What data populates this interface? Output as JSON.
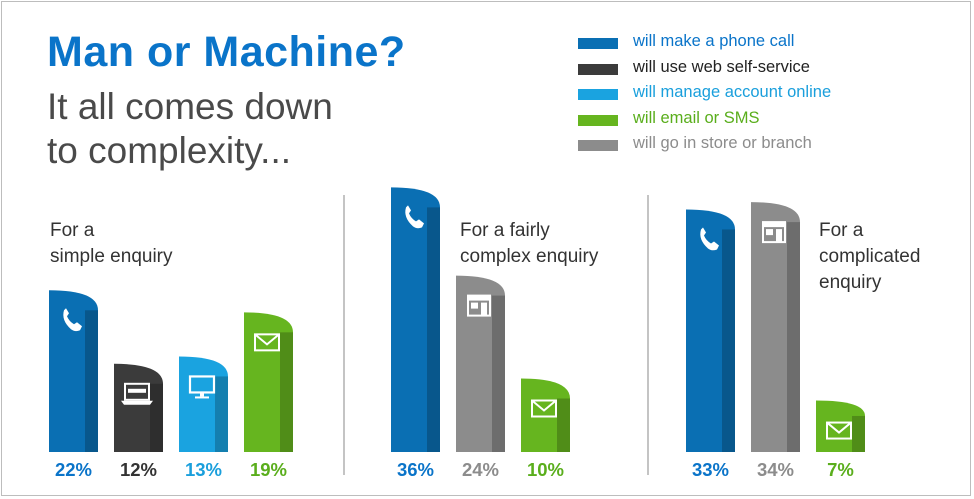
{
  "title": "Man or Machine?",
  "subtitle_lines": [
    "It all comes down",
    "to complexity..."
  ],
  "legend": [
    {
      "label": "will make a phone call",
      "color": "#0a6fb3",
      "text_color": "#0a74c9"
    },
    {
      "label": "will use web self-service",
      "color": "#3b3b3b",
      "text_color": "#222222"
    },
    {
      "label": "will manage account online",
      "color": "#1aa3e0",
      "text_color": "#1a9fdc"
    },
    {
      "label": "will email or SMS",
      "color": "#66b51f",
      "text_color": "#5aae1c"
    },
    {
      "label": "will go in store or branch",
      "color": "#8c8c8c",
      "text_color": "#8c8c8c"
    }
  ],
  "chart_data": {
    "type": "bar",
    "groups": [
      {
        "label_lines": [
          "For a",
          "simple enquiry"
        ],
        "bars": [
          {
            "channel": "will make a phone call",
            "value": 22,
            "label": "22%",
            "icon": "phone-icon"
          },
          {
            "channel": "will use web self-service",
            "value": 12,
            "label": "12%",
            "icon": "web-laptop-icon"
          },
          {
            "channel": "will manage account online",
            "value": 13,
            "label": "13%",
            "icon": "monitor-icon"
          },
          {
            "channel": "will email or SMS",
            "value": 19,
            "label": "19%",
            "icon": "envelope-icon"
          }
        ]
      },
      {
        "label_lines": [
          "For a fairly",
          "complex enquiry"
        ],
        "bars": [
          {
            "channel": "will make a phone call",
            "value": 36,
            "label": "36%",
            "icon": "phone-icon"
          },
          {
            "channel": "will go in store or branch",
            "value": 24,
            "label": "24%",
            "icon": "store-icon"
          },
          {
            "channel": "will email or SMS",
            "value": 10,
            "label": "10%",
            "icon": "envelope-icon"
          }
        ]
      },
      {
        "label_lines": [
          "For a",
          "complicated",
          "enquiry"
        ],
        "bars": [
          {
            "channel": "will make a phone call",
            "value": 33,
            "label": "33%",
            "icon": "phone-icon"
          },
          {
            "channel": "will go in store or branch",
            "value": 34,
            "label": "34%",
            "icon": "store-icon"
          },
          {
            "channel": "will email or SMS",
            "value": 7,
            "label": "7%",
            "icon": "envelope-icon"
          }
        ]
      }
    ]
  }
}
